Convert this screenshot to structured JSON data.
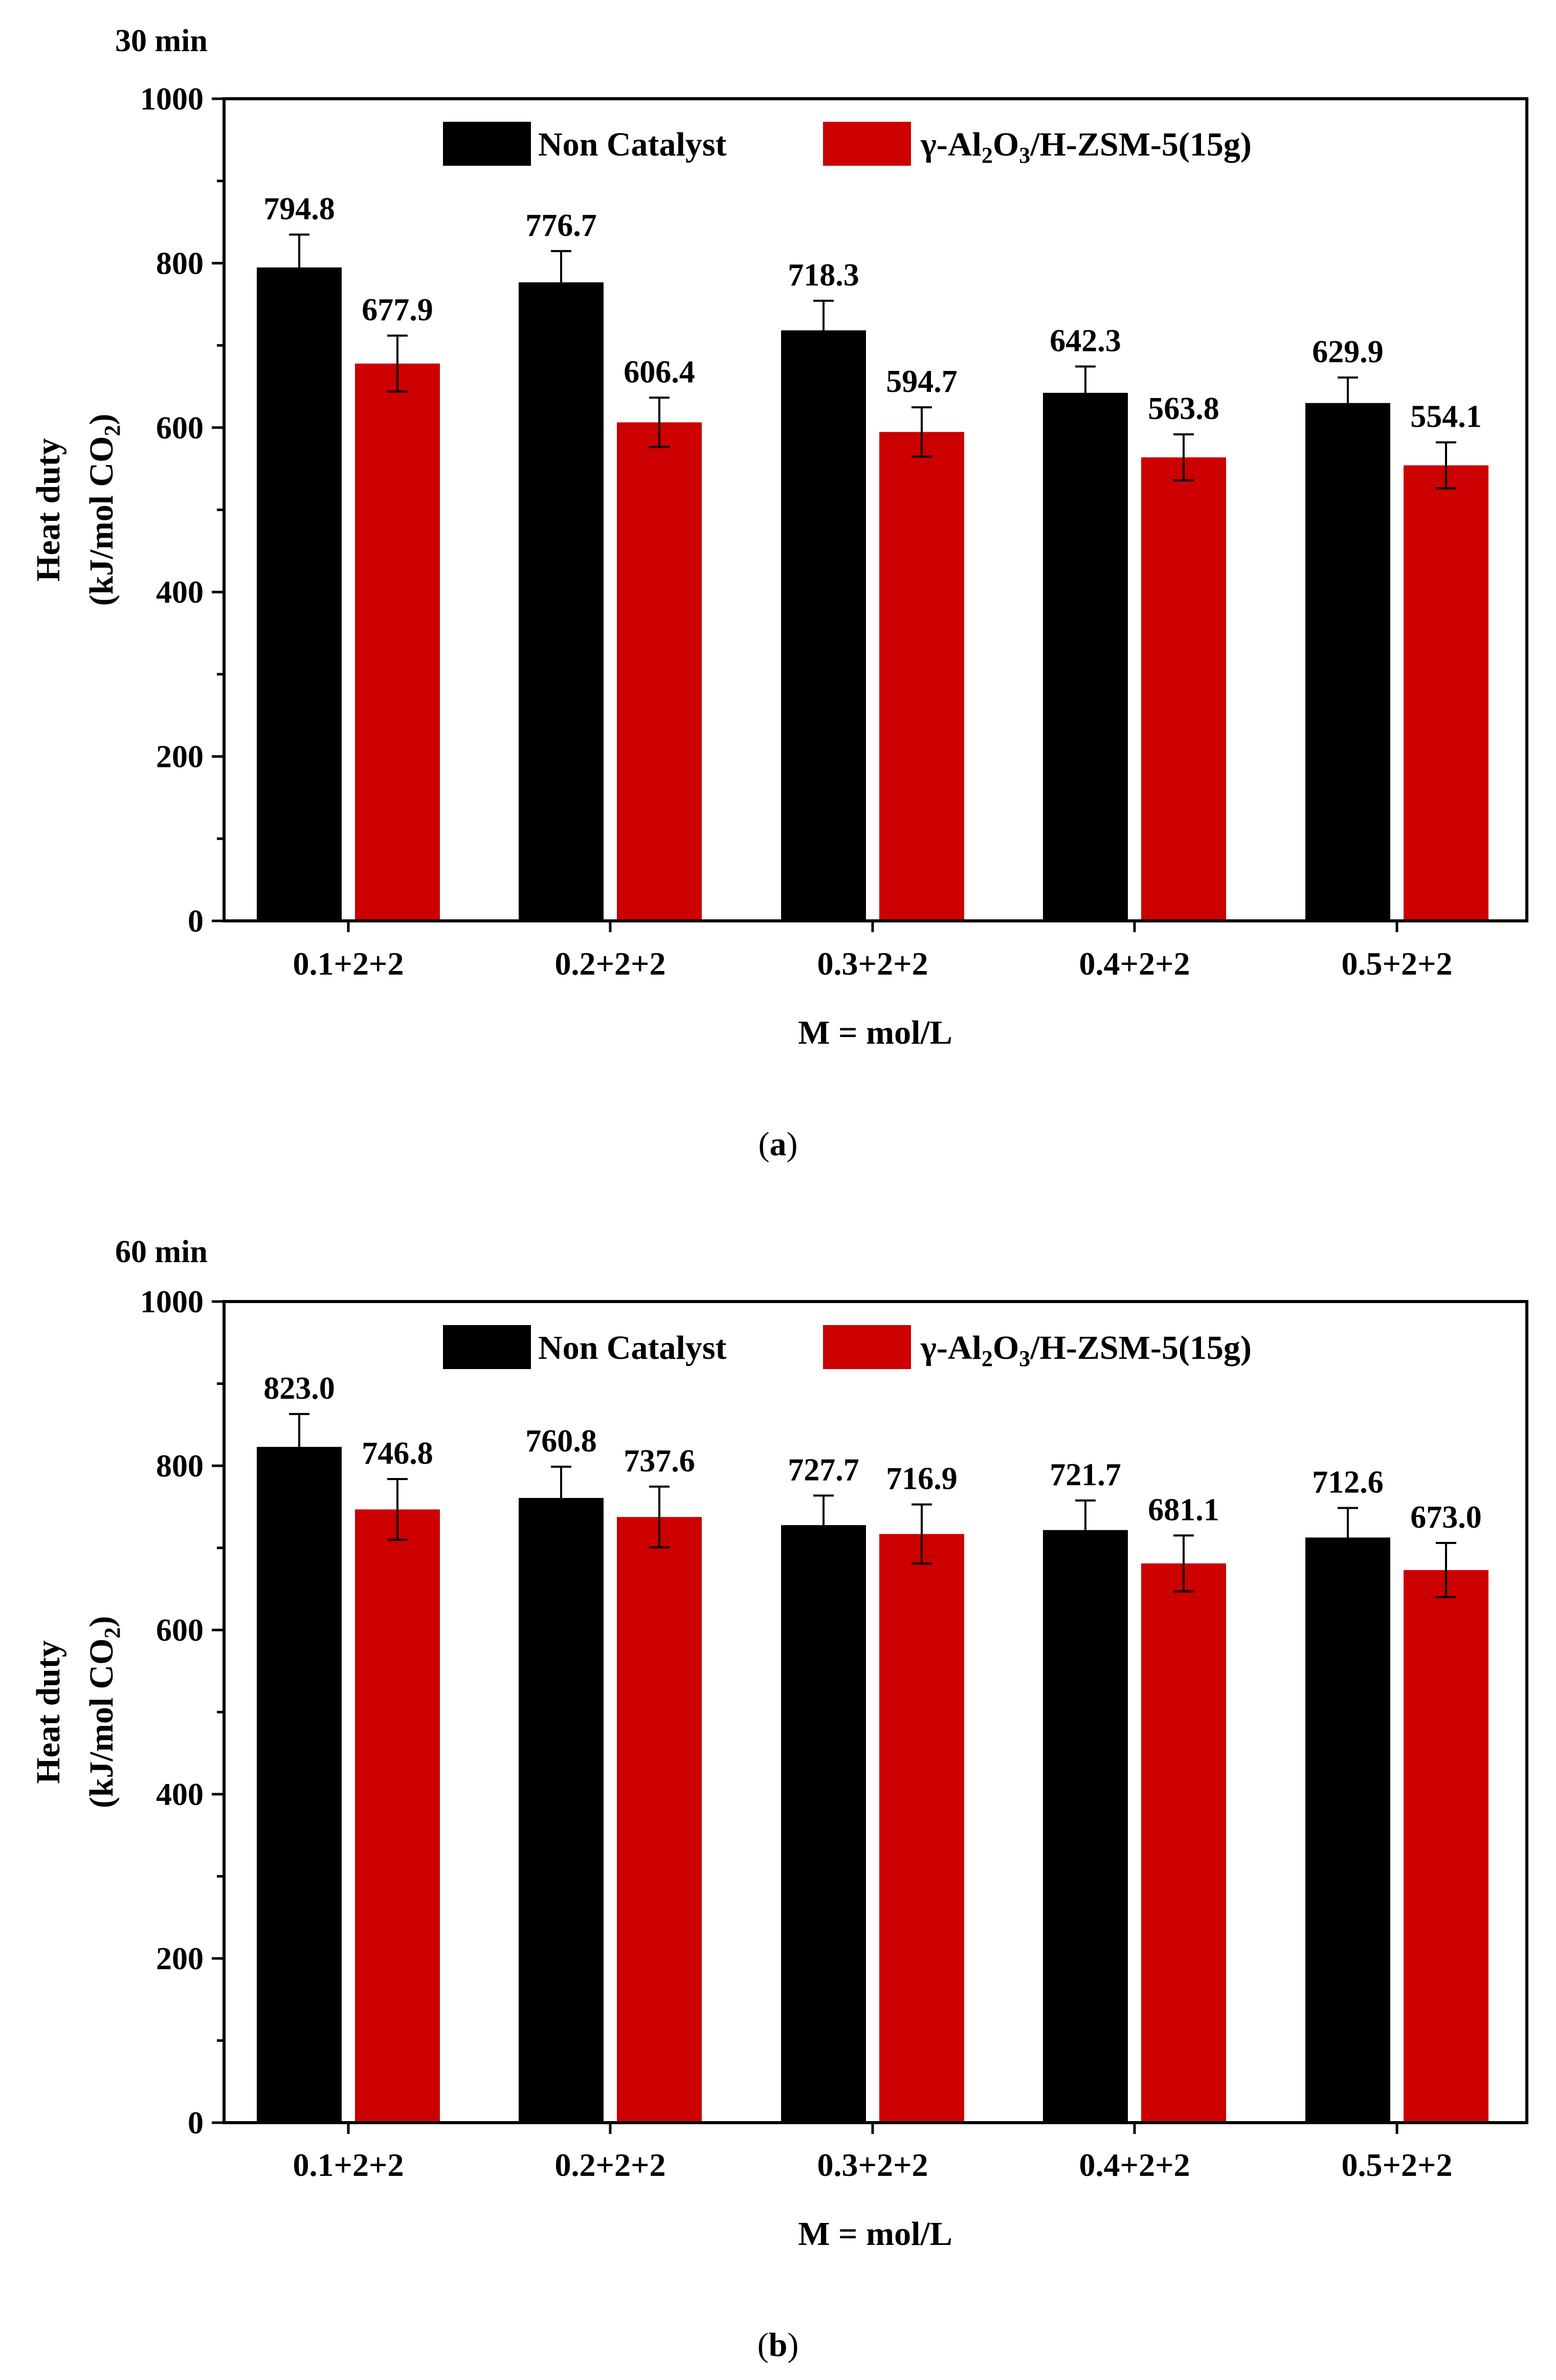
{
  "chart_data": [
    {
      "type": "bar",
      "panel": "(a)",
      "title": "30 min",
      "categories": [
        "0.1+2+2",
        "0.2+2+2",
        "0.3+2+2",
        "0.4+2+2",
        "0.5+2+2"
      ],
      "series": [
        {
          "name": "Non Catalyst",
          "color": "#000000",
          "values": [
            794.8,
            776.7,
            718.3,
            642.3,
            629.9
          ],
          "errors": [
            40,
            38,
            36,
            32,
            31
          ],
          "labels": [
            "794.8",
            "776.7",
            "718.3",
            "642.3",
            "629.9"
          ]
        },
        {
          "name": "γ-Al2O3/H-ZSM-5(15g)",
          "color": "#cc0000",
          "values": [
            677.9,
            606.4,
            594.7,
            563.8,
            554.1
          ],
          "errors": [
            34,
            30,
            30,
            28,
            28
          ],
          "labels": [
            "677.9",
            "606.4",
            "594.7",
            "563.8",
            "554.1"
          ]
        }
      ],
      "legend": {
        "series1": "Non Catalyst",
        "series2_prefix": "γ-Al",
        "series2_sub1": "2",
        "series2_mid": "O",
        "series2_sub2": "3",
        "series2_suffix": "/H-ZSM-5(15g)"
      },
      "xlabel": "M = mol/L",
      "ylabel_line1": "Heat duty",
      "ylabel_line2_prefix": "(kJ/mol CO",
      "ylabel_line2_sub": "2",
      "ylabel_line2_suffix": ")",
      "ylim": [
        0,
        1000
      ],
      "yticks": [
        "0",
        "200",
        "400",
        "600",
        "800",
        "1000"
      ],
      "caption_open": "(",
      "caption_letter": "a",
      "caption_close": ")"
    },
    {
      "type": "bar",
      "panel": "(b)",
      "title": "60 min",
      "categories": [
        "0.1+2+2",
        "0.2+2+2",
        "0.3+2+2",
        "0.4+2+2",
        "0.5+2+2"
      ],
      "series": [
        {
          "name": "Non Catalyst",
          "color": "#000000",
          "values": [
            823.0,
            760.8,
            727.7,
            721.7,
            712.6
          ],
          "errors": [
            40,
            38,
            36,
            36,
            36
          ],
          "labels": [
            "823.0",
            "760.8",
            "727.7",
            "721.7",
            "712.6"
          ]
        },
        {
          "name": "γ-Al2O3/H-ZSM-5(15g)",
          "color": "#cc0000",
          "values": [
            746.8,
            737.6,
            716.9,
            681.1,
            673.0
          ],
          "errors": [
            37,
            37,
            36,
            34,
            33
          ],
          "labels": [
            "746.8",
            "737.6",
            "716.9",
            "681.1",
            "673.0"
          ]
        }
      ],
      "legend": {
        "series1": "Non Catalyst",
        "series2_prefix": "γ-Al",
        "series2_sub1": "2",
        "series2_mid": "O",
        "series2_sub2": "3",
        "series2_suffix": "/H-ZSM-5(15g)"
      },
      "xlabel": "M = mol/L",
      "ylabel_line1": "Heat duty",
      "ylabel_line2_prefix": "(kJ/mol CO",
      "ylabel_line2_sub": "2",
      "ylabel_line2_suffix": ")",
      "ylim": [
        0,
        1000
      ],
      "yticks": [
        "0",
        "200",
        "400",
        "600",
        "800",
        "1000"
      ],
      "caption_open": "(",
      "caption_letter": "b",
      "caption_close": ")"
    }
  ]
}
